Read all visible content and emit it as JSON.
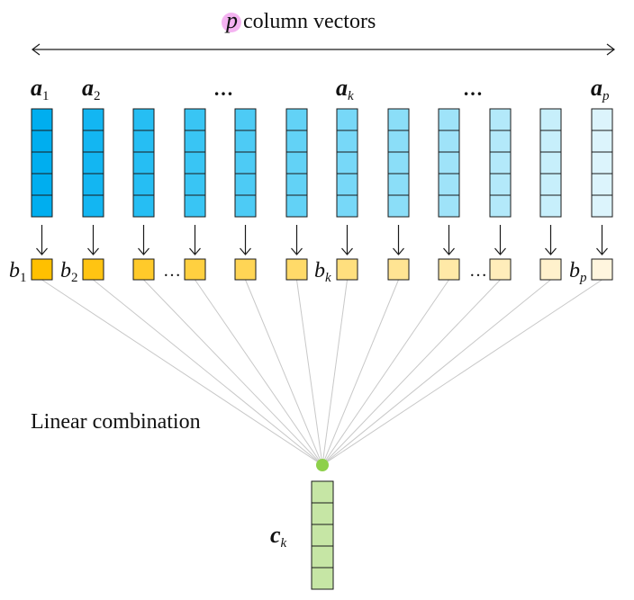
{
  "header": {
    "symbol": "p",
    "text": "column vectors"
  },
  "vectors": [
    {
      "base": "a",
      "sub": "1",
      "color": "#00aeef"
    },
    {
      "base": "a",
      "sub": "2",
      "color": "#13b6f2"
    },
    {
      "base": "",
      "sub": "",
      "color": "#26bef3"
    },
    {
      "base": "",
      "sub": "",
      "color": "#39c5f4"
    },
    {
      "base": "",
      "sub": "",
      "color": "#4dcbf5"
    },
    {
      "base": "",
      "sub": "",
      "color": "#62d2f6"
    },
    {
      "base": "a",
      "sub": "k",
      "color": "#77d8f8"
    },
    {
      "base": "",
      "sub": "",
      "color": "#8bdef8"
    },
    {
      "base": "",
      "sub": "",
      "color": "#9fe3f9"
    },
    {
      "base": "",
      "sub": "",
      "color": "#b3e9fa"
    },
    {
      "base": "",
      "sub": "",
      "color": "#c7effb"
    },
    {
      "base": "a",
      "sub": "p",
      "color": "#dcf4fc"
    }
  ],
  "top_dots": [
    "…",
    "…"
  ],
  "coefficients": [
    {
      "base": "b",
      "sub": "1",
      "color": "#ffc000"
    },
    {
      "base": "b",
      "sub": "2",
      "color": "#ffc412"
    },
    {
      "base": "",
      "sub": "",
      "color": "#ffca2a"
    },
    {
      "base": "",
      "sub": "",
      "color": "#ffd040"
    },
    {
      "base": "",
      "sub": "",
      "color": "#ffd555"
    },
    {
      "base": "",
      "sub": "",
      "color": "#ffda69"
    },
    {
      "base": "b",
      "sub": "k",
      "color": "#ffdf7e"
    },
    {
      "base": "",
      "sub": "",
      "color": "#ffe493"
    },
    {
      "base": "",
      "sub": "",
      "color": "#ffe9a7"
    },
    {
      "base": "",
      "sub": "",
      "color": "#ffedba"
    },
    {
      "base": "",
      "sub": "",
      "color": "#fff1cc"
    },
    {
      "base": "b",
      "sub": "p",
      "color": "#fff5de"
    }
  ],
  "coef_dots": [
    "…",
    "…"
  ],
  "combination_label": "Linear combination",
  "node_color": "#8dd04a",
  "output": {
    "base": "c",
    "sub": "k",
    "color": "#c6e6a5"
  },
  "colors": {
    "highlight": "#f2a6ee",
    "line": "#c8c8c8",
    "stroke": "#1a1a1a"
  }
}
